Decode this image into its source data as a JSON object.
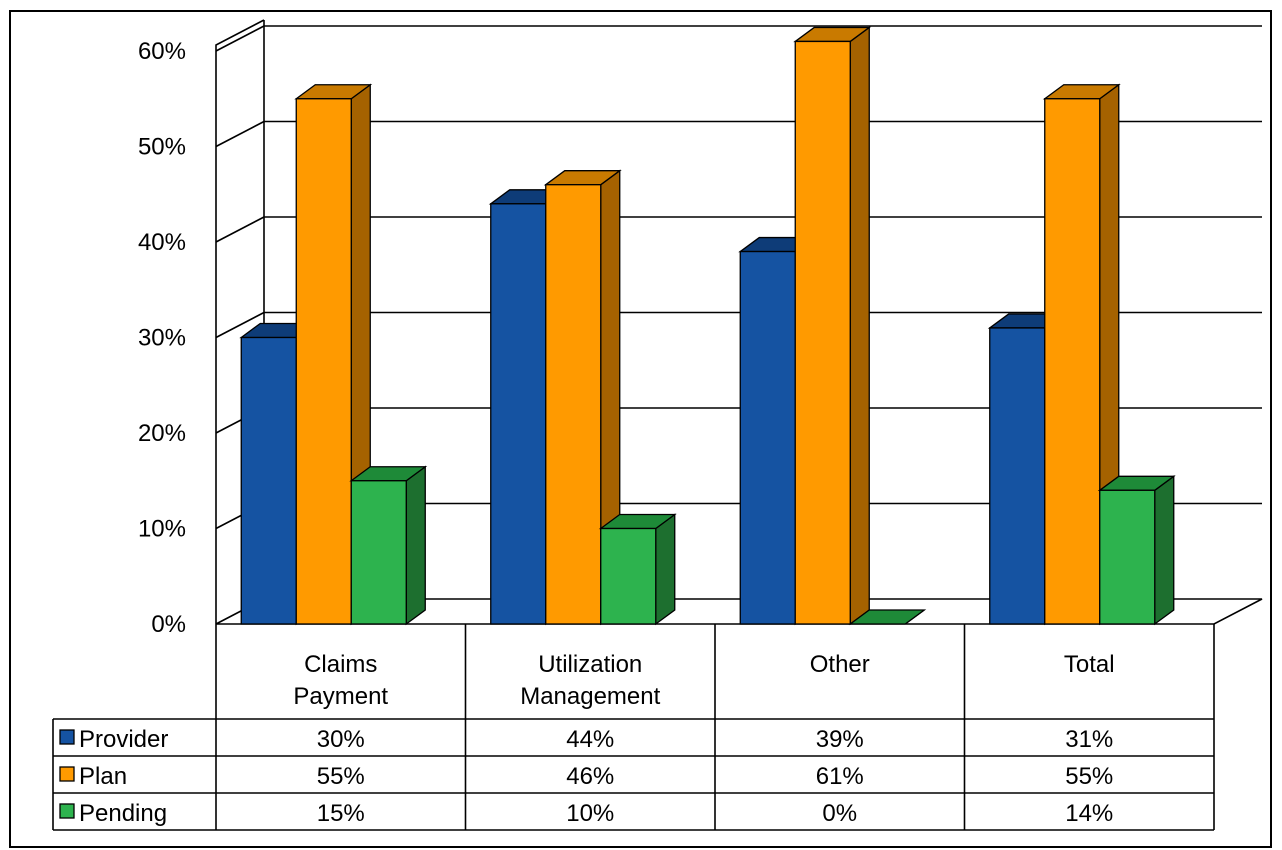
{
  "chart_data": {
    "type": "bar",
    "categories": [
      [
        "Claims",
        "Payment"
      ],
      [
        "Utilization",
        "Management"
      ],
      [
        "Other"
      ],
      [
        "Total"
      ]
    ],
    "series": [
      {
        "name": "Provider",
        "values": [
          30,
          44,
          39,
          31
        ],
        "labels": [
          "30%",
          "44%",
          "39%",
          "31%"
        ],
        "color": "#1553A2",
        "top": "#0E3C78",
        "side": "#0E3C78"
      },
      {
        "name": "Plan",
        "values": [
          55,
          46,
          61,
          55
        ],
        "labels": [
          "55%",
          "46%",
          "61%",
          "55%"
        ],
        "color": "#FF9A00",
        "top": "#C97A00",
        "side": "#A56200"
      },
      {
        "name": "Pending",
        "values": [
          15,
          10,
          0,
          14
        ],
        "labels": [
          "15%",
          "10%",
          "0%",
          "14%"
        ],
        "color": "#2DB34E",
        "top": "#1E8A38",
        "side": "#1D6F2F"
      }
    ],
    "yticks": [
      "0%",
      "10%",
      "20%",
      "30%",
      "40%",
      "50%",
      "60%"
    ],
    "ylim": [
      0,
      60
    ],
    "grid": true,
    "legend": "data-table"
  }
}
